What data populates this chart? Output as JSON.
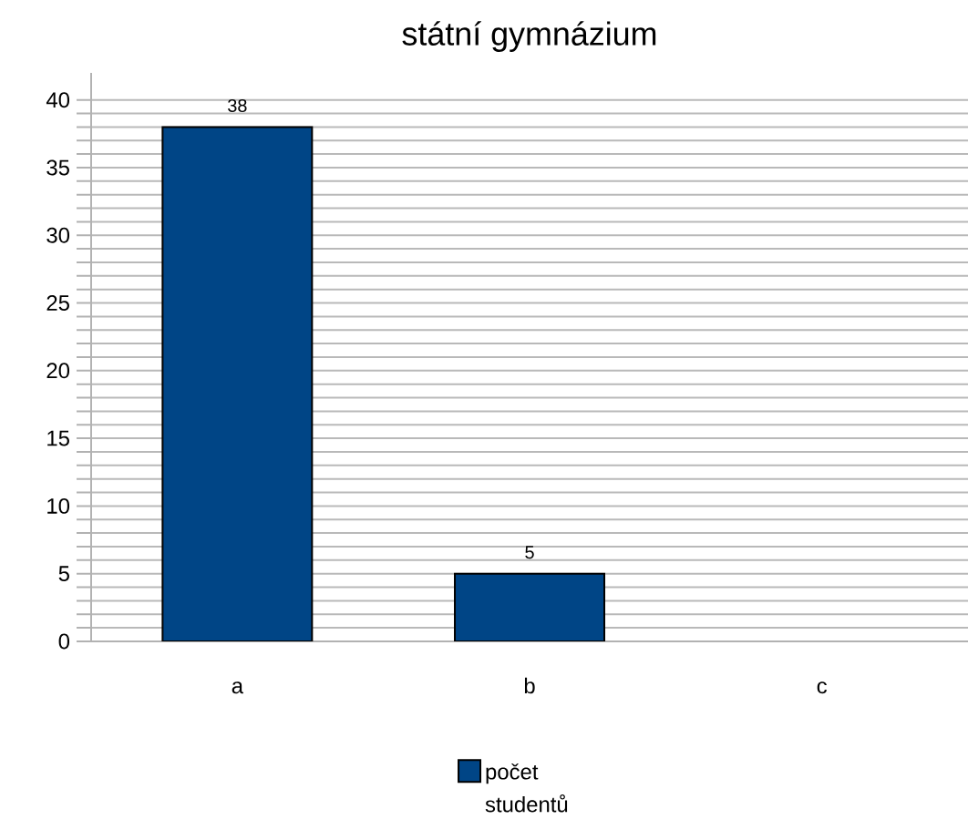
{
  "chart_data": {
    "type": "bar",
    "title": "státní gymnázium",
    "categories": [
      "a",
      "b",
      "c"
    ],
    "series": [
      {
        "name": "počet studentů",
        "color": "#004586",
        "values": [
          38,
          5,
          null
        ],
        "value_labels": [
          "38",
          "5",
          null
        ]
      }
    ],
    "ylim": [
      0,
      42
    ],
    "yticks": [
      0,
      5,
      10,
      15,
      20,
      25,
      30,
      35,
      40
    ],
    "grid": "y",
    "legend": "bottom"
  }
}
